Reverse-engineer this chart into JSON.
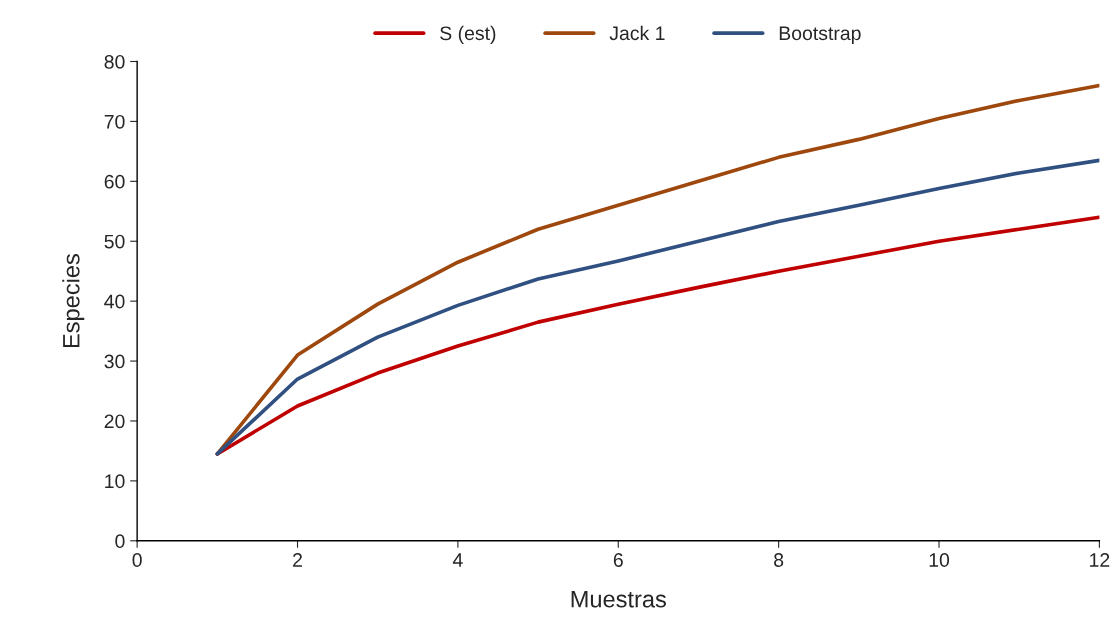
{
  "chart_data": {
    "type": "line",
    "xlabel": "Muestras",
    "ylabel": "Especies",
    "x": [
      1,
      2,
      3,
      4,
      5,
      6,
      7,
      8,
      9,
      10,
      11,
      12
    ],
    "series": [
      {
        "name": "S (est)",
        "color": "#c00000",
        "values": [
          14.5,
          22.5,
          28,
          32.5,
          36.5,
          39.5,
          42.3,
          45,
          47.5,
          50,
          52,
          54
        ]
      },
      {
        "name": "Jack 1",
        "color": "#9e480e",
        "values": [
          14.5,
          31,
          39.5,
          46.5,
          52,
          56,
          60,
          64,
          67,
          70.5,
          73.5,
          76
        ]
      },
      {
        "name": "Bootstrap",
        "color": "#2f5080",
        "values": [
          14.5,
          27,
          34,
          39.3,
          43.7,
          46.7,
          50,
          53.3,
          56,
          58.8,
          61.4,
          63.5
        ]
      }
    ],
    "xlim": [
      0,
      12
    ],
    "xticks": [
      0,
      2,
      4,
      6,
      8,
      10,
      12
    ],
    "ylim": [
      0,
      80
    ],
    "yticks": [
      0,
      10,
      20,
      30,
      40,
      50,
      60,
      70,
      80
    ],
    "grid": false,
    "legend": "top",
    "marker": "none",
    "line_style": "solid"
  }
}
